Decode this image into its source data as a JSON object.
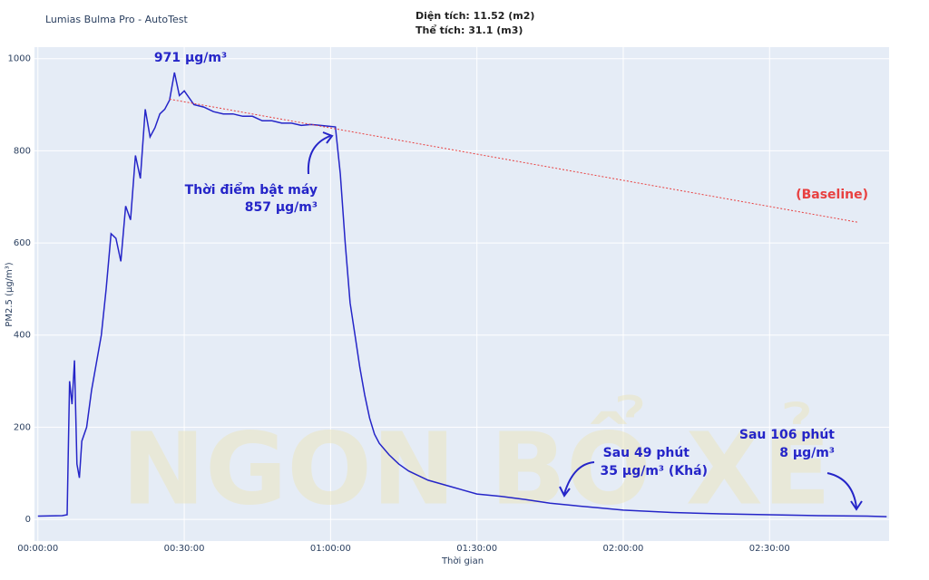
{
  "header": {
    "app": "Lumias Bulma Pro - AutoTest",
    "area": "Diện tích: 11.52 (m2)",
    "volume": "Thể tích: 31.1 (m3)"
  },
  "watermark": "NGON BỔ XẺ",
  "chart_data": {
    "type": "line",
    "x_label": "Thời gian",
    "y_label": "PM2.5 (µg/m³)",
    "xlim": [
      -0.7,
      174.5
    ],
    "ylim": [
      -47,
      1025
    ],
    "xticks": [
      {
        "value": 0,
        "label": "00:00:00"
      },
      {
        "value": 30,
        "label": "00:30:00"
      },
      {
        "value": 60,
        "label": "01:00:00"
      },
      {
        "value": 90,
        "label": "01:30:00"
      },
      {
        "value": 120,
        "label": "02:00:00"
      },
      {
        "value": 150,
        "label": "02:30:00"
      }
    ],
    "yticks": [
      0,
      200,
      400,
      600,
      800,
      1000
    ],
    "grid": true,
    "series": [
      {
        "name": "PM2.5",
        "color": "#2525c8",
        "dash": false,
        "x": [
          0,
          5,
          6,
          6.5,
          7,
          7.5,
          8,
          8.5,
          9,
          10,
          11,
          12,
          13,
          14,
          15,
          16,
          17,
          18,
          19,
          20,
          21,
          22,
          23,
          24,
          25,
          26,
          27,
          28,
          29,
          30,
          32,
          34,
          36,
          38,
          40,
          42,
          44,
          46,
          48,
          50,
          52,
          54,
          56,
          58,
          61,
          62,
          63,
          64,
          65,
          66,
          67,
          68,
          69,
          70,
          72,
          74,
          76,
          78,
          80,
          85,
          90,
          95,
          100,
          105,
          110,
          115,
          120,
          130,
          140,
          150,
          160,
          170,
          174
        ],
        "values": [
          7,
          8,
          10,
          300,
          250,
          345,
          120,
          90,
          170,
          200,
          280,
          340,
          400,
          500,
          620,
          610,
          560,
          680,
          650,
          790,
          740,
          890,
          830,
          850,
          880,
          890,
          910,
          970,
          920,
          930,
          900,
          895,
          885,
          880,
          880,
          875,
          875,
          865,
          865,
          860,
          860,
          855,
          857,
          855,
          852,
          750,
          600,
          470,
          400,
          330,
          270,
          220,
          185,
          165,
          140,
          120,
          105,
          95,
          85,
          70,
          55,
          50,
          43,
          35,
          30,
          25,
          20,
          15,
          12,
          10,
          8,
          7,
          6
        ]
      },
      {
        "name": "(Baseline)",
        "color": "#e84040",
        "dash": true,
        "x": [
          27,
          168
        ],
        "values": [
          912,
          645
        ]
      }
    ],
    "annotations": [
      "971 µg/m³",
      "Thời điểm bật máy",
      "857 µg/m³",
      "Sau 49 phút",
      "35 µg/m³ (Khá)",
      "Sau 106 phút",
      "8 µg/m³"
    ]
  }
}
